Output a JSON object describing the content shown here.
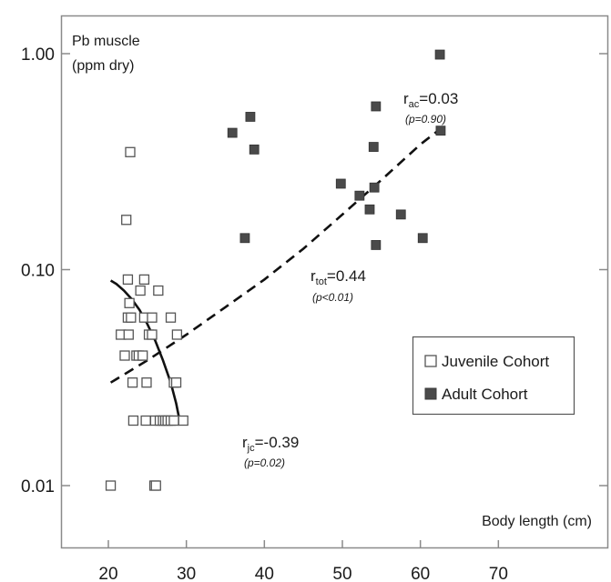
{
  "chart_data": {
    "type": "scatter",
    "xlabel": "Body length (cm)",
    "ylabel_line1": "Pb muscle",
    "ylabel_line2": "(ppm dry)",
    "x_scale": "linear",
    "y_scale": "log",
    "xlim": [
      10,
      70
    ],
    "ylim": [
      0.0065,
      1.6
    ],
    "x_ticks": [
      20,
      30,
      40,
      50,
      60,
      70
    ],
    "x_tick_labels": [
      "20",
      "30",
      "40",
      "50",
      "60",
      "70"
    ],
    "y_ticks": [
      0.01,
      0.1,
      1.0
    ],
    "y_tick_labels": [
      "0.01",
      "0.10",
      "1.00"
    ],
    "grid": false,
    "legend_position": "lower-right",
    "series": [
      {
        "name": "Juvenile Cohort",
        "marker": "open-square",
        "color": "#555555",
        "points": [
          [
            20.3,
            0.01
          ],
          [
            22.3,
            0.17
          ],
          [
            22.8,
            0.35
          ],
          [
            22.5,
            0.09
          ],
          [
            22.7,
            0.07
          ],
          [
            21.6,
            0.05
          ],
          [
            22.1,
            0.04
          ],
          [
            22.5,
            0.06
          ],
          [
            22.9,
            0.06
          ],
          [
            22.6,
            0.05
          ],
          [
            23.1,
            0.03
          ],
          [
            23.2,
            0.02
          ],
          [
            23.6,
            0.04
          ],
          [
            23.9,
            0.04
          ],
          [
            24.1,
            0.08
          ],
          [
            24.4,
            0.04
          ],
          [
            24.6,
            0.09
          ],
          [
            24.6,
            0.06
          ],
          [
            24.9,
            0.03
          ],
          [
            24.8,
            0.02
          ],
          [
            25.2,
            0.05
          ],
          [
            25.6,
            0.05
          ],
          [
            25.6,
            0.06
          ],
          [
            26.0,
            0.02
          ],
          [
            25.9,
            0.01
          ],
          [
            26.1,
            0.01
          ],
          [
            26.4,
            0.08
          ],
          [
            26.6,
            0.02
          ],
          [
            27.0,
            0.02
          ],
          [
            27.3,
            0.02
          ],
          [
            27.6,
            0.02
          ],
          [
            28.0,
            0.02
          ],
          [
            28.0,
            0.06
          ],
          [
            28.4,
            0.02
          ],
          [
            28.4,
            0.03
          ],
          [
            28.7,
            0.03
          ],
          [
            28.8,
            0.05
          ],
          [
            29.6,
            0.02
          ]
        ]
      },
      {
        "name": "Adult Cohort",
        "marker": "filled-square",
        "color": "#4a4a4a",
        "points": [
          [
            35.9,
            0.43
          ],
          [
            37.5,
            0.14
          ],
          [
            38.2,
            0.51
          ],
          [
            38.7,
            0.36
          ],
          [
            49.8,
            0.25
          ],
          [
            52.2,
            0.22
          ],
          [
            53.5,
            0.19
          ],
          [
            54.0,
            0.37
          ],
          [
            54.1,
            0.24
          ],
          [
            54.3,
            0.13
          ],
          [
            54.3,
            0.57
          ],
          [
            57.5,
            0.18
          ],
          [
            60.3,
            0.14
          ],
          [
            62.5,
            0.99
          ],
          [
            62.6,
            0.44
          ]
        ]
      }
    ],
    "fits": [
      {
        "name": "juvenile",
        "style": "solid",
        "label": "r",
        "subscript": "jc",
        "value": "=-0.39",
        "p": "(p=0.02)",
        "x": [
          20.3,
          21.0,
          22.0,
          23.0,
          24.0,
          25.0,
          26.0,
          27.0,
          28.0,
          28.7,
          29.2
        ],
        "y": [
          0.089,
          0.086,
          0.08,
          0.073,
          0.065,
          0.056,
          0.047,
          0.038,
          0.03,
          0.024,
          0.0195
        ]
      },
      {
        "name": "total",
        "style": "dashed",
        "label": "r",
        "subscript": "tot",
        "value": "=0.44",
        "p": "(p<0.01)",
        "x": [
          20.3,
          25.0,
          30.0,
          35.0,
          40.0,
          45.0,
          50.0,
          55.0,
          60.0,
          62.6
        ],
        "y": [
          0.03,
          0.038,
          0.05,
          0.067,
          0.09,
          0.125,
          0.18,
          0.26,
          0.38,
          0.45
        ]
      },
      {
        "name": "adult",
        "style": "none",
        "label": "r",
        "subscript": "ac",
        "value": "=0.03",
        "p": "(p=0.90)"
      }
    ]
  }
}
